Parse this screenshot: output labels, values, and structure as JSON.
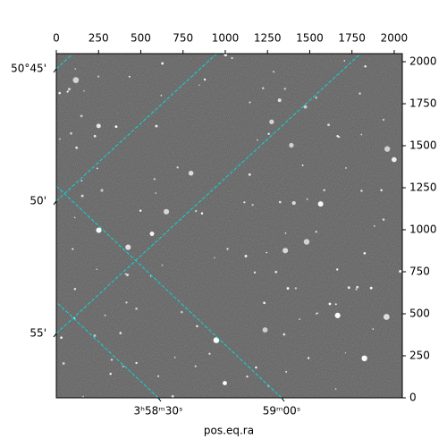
{
  "chart_data": {
    "type": "image",
    "xlabel": "pos.eq.ra",
    "xlim": [
      0,
      2048
    ],
    "ylim": [
      0,
      2048
    ],
    "xticks": [
      0,
      250,
      500,
      750,
      1000,
      1250,
      1500,
      1750,
      2000
    ],
    "yticks": [
      0,
      250,
      500,
      750,
      1000,
      1250,
      1500,
      1750,
      2000
    ],
    "ra_ticks": [
      {
        "value": 59.625,
        "label": "3ʰ58ᵐ30ˢ"
      },
      {
        "value": 59.75,
        "label": "59ᵐ00ˢ"
      }
    ],
    "dec_ticks": [
      {
        "value": 50.75,
        "label": "50°45'"
      },
      {
        "value": 50.8333,
        "label": "50'"
      },
      {
        "value": 50.9167,
        "label": "55'"
      }
    ],
    "grid": true,
    "grid_color": "#00e0e0"
  }
}
